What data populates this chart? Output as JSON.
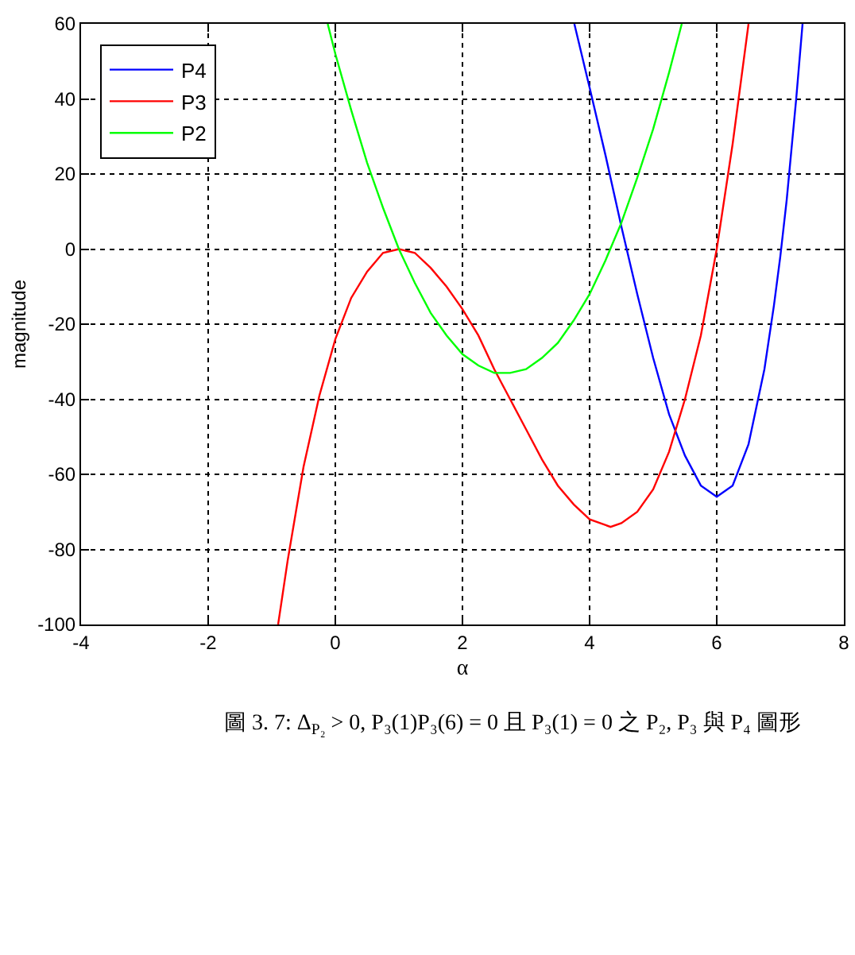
{
  "chart_data": {
    "type": "line",
    "xlabel": "α",
    "ylabel": "magnitude",
    "xlim": [
      -4,
      8
    ],
    "xticks": [
      -4,
      -2,
      0,
      2,
      4,
      6,
      8
    ],
    "ylim": [
      -100,
      60
    ],
    "yticks": [
      -100,
      -80,
      -60,
      -40,
      -20,
      0,
      20,
      40,
      60
    ],
    "grid": true,
    "legend": "top left",
    "series": [
      {
        "name": "P4",
        "color": "#0000ff",
        "x": [
          3.76,
          4,
          4.25,
          4.5,
          4.75,
          5,
          5.25,
          5.5,
          5.75,
          6,
          6.25,
          6.5,
          6.75,
          6.9,
          7,
          7.1,
          7.25,
          7.35
        ],
        "values": [
          60,
          43,
          25,
          6,
          -12,
          -29,
          -44,
          -55,
          -63,
          -66,
          -63,
          -52,
          -32,
          -15,
          -2,
          13,
          40,
          60
        ]
      },
      {
        "name": "P3",
        "color": "#ff0000",
        "x": [
          -0.9,
          -0.75,
          -0.5,
          -0.25,
          0,
          0.25,
          0.5,
          0.75,
          1,
          1.25,
          1.5,
          1.75,
          2,
          2.25,
          2.5,
          2.75,
          3,
          3.25,
          3.5,
          3.75,
          4,
          4.33,
          4.5,
          4.75,
          5,
          5.25,
          5.5,
          5.75,
          6,
          6.25,
          6.5
        ],
        "values": [
          -100,
          -83,
          -58,
          -39,
          -24,
          -13,
          -6,
          -1,
          0,
          -1,
          -5,
          -10,
          -16,
          -23,
          -32,
          -40,
          -48,
          -56,
          -63,
          -68,
          -72,
          -74,
          -73,
          -70,
          -64,
          -54,
          -40,
          -23,
          0,
          28,
          60
        ]
      },
      {
        "name": "P2",
        "color": "#00ff00",
        "x": [
          -0.12,
          0,
          0.25,
          0.5,
          0.75,
          1,
          1.25,
          1.5,
          1.75,
          2,
          2.25,
          2.5,
          2.75,
          3,
          3.25,
          3.5,
          3.75,
          4,
          4.25,
          4.5,
          4.75,
          5,
          5.25,
          5.45
        ],
        "values": [
          60,
          52,
          37,
          23,
          11,
          0,
          -9,
          -17,
          -23,
          -28,
          -31,
          -33,
          -33,
          -32,
          -29,
          -25,
          -19,
          -12,
          -3,
          7,
          19,
          32,
          47,
          60
        ]
      }
    ],
    "annotations": [
      "圖 3. 7: Δ$_{P₂}$ > 0, P₃(1)P₃(6) = 0 且 P₃(1) = 0 之 P₂, P₃ 與 P₄ 圖形"
    ]
  }
}
